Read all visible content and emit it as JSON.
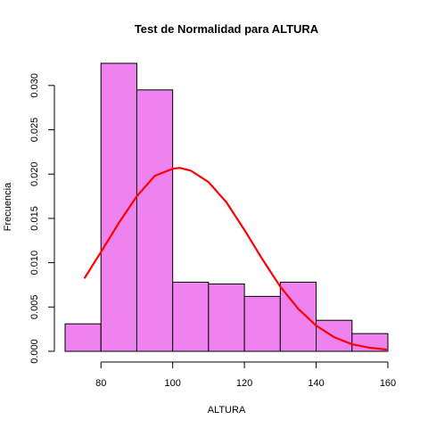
{
  "chart_data": {
    "type": "bar",
    "title": "Test de Normalidad para  ALTURA",
    "xlabel": "ALTURA",
    "ylabel": "Frecuencia",
    "xlim": [
      70,
      160
    ],
    "ylim": [
      0,
      0.0325
    ],
    "x_ticks": [
      80,
      100,
      120,
      140,
      160
    ],
    "y_ticks": [
      0.0,
      0.005,
      0.01,
      0.015,
      0.02,
      0.025,
      0.03
    ],
    "y_tick_labels": [
      "0.000",
      "0.005",
      "0.010",
      "0.015",
      "0.020",
      "0.025",
      "0.030"
    ],
    "bins": [
      {
        "start": 70,
        "end": 80,
        "value": 0.0031
      },
      {
        "start": 80,
        "end": 90,
        "value": 0.0325
      },
      {
        "start": 90,
        "end": 100,
        "value": 0.0295
      },
      {
        "start": 100,
        "end": 110,
        "value": 0.0078
      },
      {
        "start": 110,
        "end": 120,
        "value": 0.0076
      },
      {
        "start": 120,
        "end": 130,
        "value": 0.0062
      },
      {
        "start": 130,
        "end": 140,
        "value": 0.0078
      },
      {
        "start": 140,
        "end": 150,
        "value": 0.0035
      },
      {
        "start": 150,
        "end": 160,
        "value": 0.002
      }
    ],
    "bar_color": "#EE82EE",
    "curve": {
      "type": "normal-density",
      "color": "#FF0000",
      "x": [
        75.5,
        80,
        85,
        90,
        95,
        100,
        102,
        105,
        110,
        115,
        120,
        125,
        130,
        135,
        140,
        145,
        150,
        155,
        159.5
      ],
      "y": [
        0.0083,
        0.0112,
        0.0145,
        0.0175,
        0.0198,
        0.0206,
        0.0207,
        0.0204,
        0.0191,
        0.0168,
        0.0137,
        0.0104,
        0.0073,
        0.0048,
        0.0029,
        0.0016,
        0.0008,
        0.0004,
        0.0002
      ]
    }
  }
}
